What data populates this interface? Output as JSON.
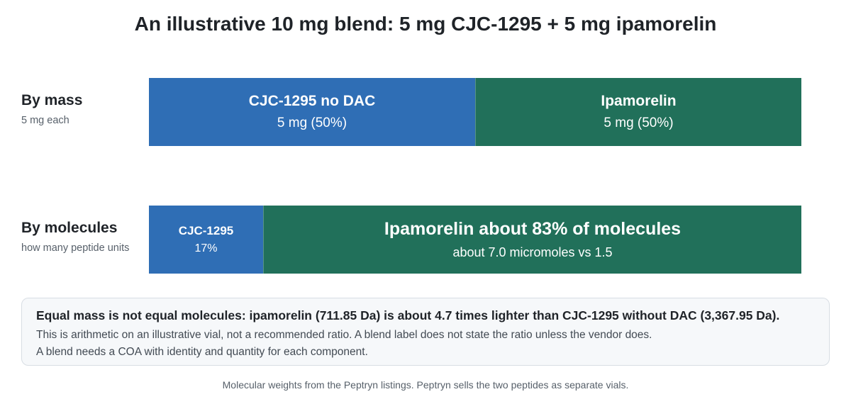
{
  "title": "An illustrative 10 mg blend: 5 mg CJC-1295 + 5 mg ipamorelin",
  "colors": {
    "cjc": "#2f6eb5",
    "ipamorelin": "#21705a"
  },
  "chart_data": [
    {
      "type": "bar",
      "orientation": "horizontal-stacked",
      "row_label": "By mass",
      "row_sublabel": "5 mg each",
      "segments": [
        {
          "label": "CJC-1295 no DAC",
          "value_text": "5 mg (50%)",
          "share": 50
        },
        {
          "label": "Ipamorelin",
          "value_text": "5 mg (50%)",
          "share": 50
        }
      ]
    },
    {
      "type": "bar",
      "orientation": "horizontal-stacked",
      "row_label": "By molecules",
      "row_sublabel": "how many peptide units",
      "segments": [
        {
          "label": "CJC-1295",
          "value_text": "17%",
          "share": 17.5
        },
        {
          "label": "Ipamorelin about 83% of molecules",
          "value_text": "about 7.0 micromoles vs 1.5",
          "share": 82.5
        }
      ]
    }
  ],
  "callout": {
    "headline": "Equal mass is not equal molecules: ipamorelin (711.85 Da) is about 4.7 times lighter than CJC-1295 without DAC (3,367.95 Da).",
    "line1": "This is arithmetic on an illustrative vial, not a recommended ratio. A blend label does not state the ratio unless the vendor does.",
    "line2": "A blend needs a COA with identity and quantity for each component."
  },
  "footer": "Molecular weights from the Peptryn listings. Peptryn sells the two peptides as separate vials."
}
